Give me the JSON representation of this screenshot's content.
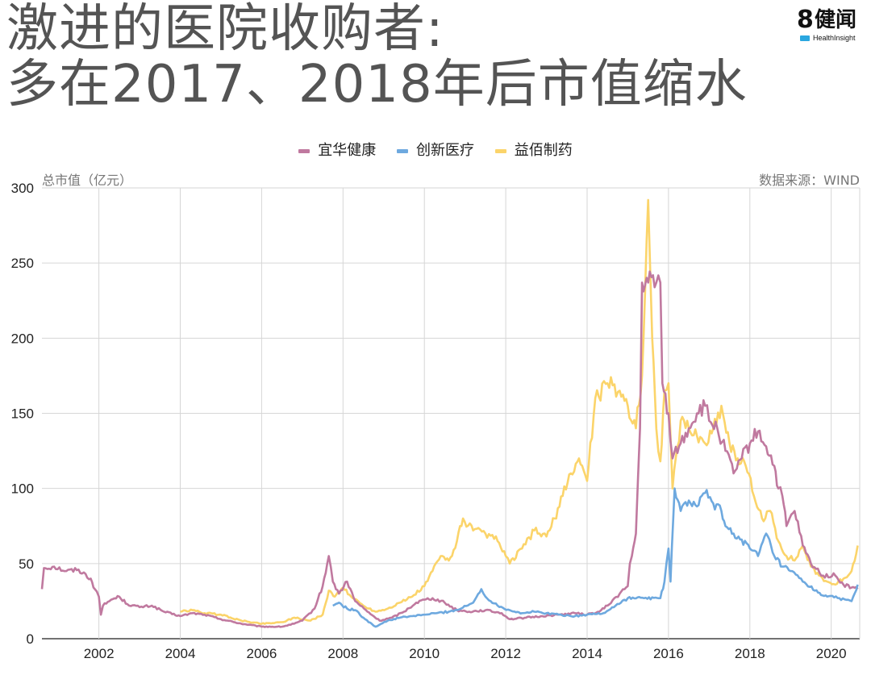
{
  "title_lines": [
    "激进的医院收购者:",
    "多在2017、2018年后市值缩水"
  ],
  "logo": {
    "mark": "8",
    "cn": "健闻",
    "en": "HealthInsight"
  },
  "chart_data": {
    "type": "line",
    "ylabel": "总市值（亿元）",
    "source": "数据来源：WIND",
    "xlim": [
      2000.6,
      2020.7
    ],
    "ylim": [
      0,
      300
    ],
    "x_ticks": [
      2002,
      2004,
      2006,
      2008,
      2010,
      2012,
      2014,
      2016,
      2018,
      2020
    ],
    "y_ticks": [
      0,
      50,
      100,
      150,
      200,
      250,
      300
    ],
    "grid": true,
    "legend": "top-center",
    "series": [
      {
        "name": "宜华健康",
        "color": "#c0799f",
        "points": [
          [
            2000.6,
            33
          ],
          [
            2000.65,
            47
          ],
          [
            2000.9,
            48
          ],
          [
            2001.2,
            45
          ],
          [
            2001.5,
            46
          ],
          [
            2001.8,
            40
          ],
          [
            2001.9,
            33
          ],
          [
            2002.0,
            28
          ],
          [
            2002.05,
            16
          ],
          [
            2002.1,
            22
          ],
          [
            2002.3,
            26
          ],
          [
            2002.5,
            28
          ],
          [
            2002.7,
            23
          ],
          [
            2003.0,
            21
          ],
          [
            2003.3,
            22
          ],
          [
            2003.6,
            18
          ],
          [
            2004.0,
            15
          ],
          [
            2004.3,
            17
          ],
          [
            2004.6,
            16
          ],
          [
            2005.0,
            13
          ],
          [
            2005.5,
            10
          ],
          [
            2006.0,
            8
          ],
          [
            2006.5,
            8
          ],
          [
            2006.8,
            10
          ],
          [
            2007.0,
            12
          ],
          [
            2007.3,
            20
          ],
          [
            2007.5,
            35
          ],
          [
            2007.65,
            55
          ],
          [
            2007.75,
            38
          ],
          [
            2007.9,
            30
          ],
          [
            2008.1,
            38
          ],
          [
            2008.3,
            25
          ],
          [
            2008.6,
            18
          ],
          [
            2008.9,
            12
          ],
          [
            2009.2,
            14
          ],
          [
            2009.5,
            18
          ],
          [
            2009.8,
            24
          ],
          [
            2010.0,
            26
          ],
          [
            2010.2,
            27
          ],
          [
            2010.5,
            24
          ],
          [
            2010.8,
            19
          ],
          [
            2011.1,
            18
          ],
          [
            2011.5,
            19
          ],
          [
            2011.9,
            17
          ],
          [
            2012.1,
            13
          ],
          [
            2012.5,
            14
          ],
          [
            2012.9,
            15
          ],
          [
            2013.3,
            16
          ],
          [
            2013.7,
            17
          ],
          [
            2014.0,
            16
          ],
          [
            2014.3,
            18
          ],
          [
            2014.5,
            22
          ],
          [
            2014.8,
            30
          ],
          [
            2015.0,
            35
          ],
          [
            2015.05,
            50
          ],
          [
            2015.1,
            55
          ],
          [
            2015.2,
            70
          ],
          [
            2015.3,
            140
          ],
          [
            2015.35,
            237
          ],
          [
            2015.5,
            237
          ],
          [
            2015.7,
            237
          ],
          [
            2015.8,
            237
          ],
          [
            2015.85,
            170
          ],
          [
            2016.0,
            150
          ],
          [
            2016.1,
            120
          ],
          [
            2016.3,
            130
          ],
          [
            2016.5,
            140
          ],
          [
            2016.7,
            150
          ],
          [
            2016.9,
            155
          ],
          [
            2017.0,
            145
          ],
          [
            2017.2,
            140
          ],
          [
            2017.4,
            125
          ],
          [
            2017.6,
            110
          ],
          [
            2017.8,
            120
          ],
          [
            2018.0,
            130
          ],
          [
            2018.2,
            138
          ],
          [
            2018.4,
            128
          ],
          [
            2018.6,
            115
          ],
          [
            2018.7,
            100
          ],
          [
            2018.8,
            95
          ],
          [
            2018.9,
            75
          ],
          [
            2019.1,
            85
          ],
          [
            2019.3,
            62
          ],
          [
            2019.5,
            50
          ],
          [
            2019.8,
            42
          ],
          [
            2020.1,
            42
          ],
          [
            2020.3,
            36
          ],
          [
            2020.5,
            34
          ],
          [
            2020.65,
            33
          ]
        ]
      },
      {
        "name": "创新医疗",
        "color": "#6ea9df",
        "points": [
          [
            2007.75,
            22
          ],
          [
            2007.9,
            24
          ],
          [
            2008.1,
            20
          ],
          [
            2008.3,
            19
          ],
          [
            2008.5,
            14
          ],
          [
            2008.8,
            8
          ],
          [
            2009.1,
            12
          ],
          [
            2009.4,
            14
          ],
          [
            2009.7,
            15
          ],
          [
            2010.0,
            16
          ],
          [
            2010.3,
            17
          ],
          [
            2010.6,
            18
          ],
          [
            2010.9,
            20
          ],
          [
            2011.2,
            24
          ],
          [
            2011.4,
            33
          ],
          [
            2011.5,
            28
          ],
          [
            2011.8,
            22
          ],
          [
            2012.1,
            19
          ],
          [
            2012.4,
            17
          ],
          [
            2012.7,
            18
          ],
          [
            2013.0,
            17
          ],
          [
            2013.3,
            16
          ],
          [
            2013.7,
            15
          ],
          [
            2014.0,
            16
          ],
          [
            2014.4,
            17
          ],
          [
            2014.7,
            22
          ],
          [
            2015.0,
            27
          ],
          [
            2015.4,
            27
          ],
          [
            2015.8,
            27
          ],
          [
            2015.9,
            38
          ],
          [
            2016.0,
            60
          ],
          [
            2016.05,
            38
          ],
          [
            2016.15,
            100
          ],
          [
            2016.3,
            85
          ],
          [
            2016.5,
            92
          ],
          [
            2016.7,
            88
          ],
          [
            2016.9,
            97
          ],
          [
            2017.1,
            90
          ],
          [
            2017.3,
            85
          ],
          [
            2017.4,
            75
          ],
          [
            2017.6,
            70
          ],
          [
            2017.8,
            66
          ],
          [
            2018.0,
            60
          ],
          [
            2018.2,
            55
          ],
          [
            2018.4,
            70
          ],
          [
            2018.6,
            55
          ],
          [
            2018.8,
            48
          ],
          [
            2019.0,
            45
          ],
          [
            2019.3,
            38
          ],
          [
            2019.6,
            32
          ],
          [
            2019.9,
            28
          ],
          [
            2020.2,
            27
          ],
          [
            2020.5,
            25
          ],
          [
            2020.65,
            36
          ]
        ]
      },
      {
        "name": "益佰制药",
        "color": "#fbd46a",
        "points": [
          [
            2004.0,
            18
          ],
          [
            2004.3,
            19
          ],
          [
            2004.6,
            17
          ],
          [
            2005.0,
            16
          ],
          [
            2005.5,
            12
          ],
          [
            2006.0,
            10
          ],
          [
            2006.5,
            11
          ],
          [
            2006.8,
            14
          ],
          [
            2007.2,
            12
          ],
          [
            2007.5,
            16
          ],
          [
            2007.65,
            32
          ],
          [
            2007.8,
            28
          ],
          [
            2008.0,
            34
          ],
          [
            2008.2,
            28
          ],
          [
            2008.5,
            22
          ],
          [
            2008.8,
            18
          ],
          [
            2009.1,
            20
          ],
          [
            2009.4,
            24
          ],
          [
            2009.7,
            28
          ],
          [
            2010.0,
            35
          ],
          [
            2010.2,
            45
          ],
          [
            2010.4,
            55
          ],
          [
            2010.6,
            52
          ],
          [
            2010.8,
            65
          ],
          [
            2010.95,
            80
          ],
          [
            2011.2,
            72
          ],
          [
            2011.5,
            70
          ],
          [
            2011.8,
            65
          ],
          [
            2012.0,
            55
          ],
          [
            2012.1,
            50
          ],
          [
            2012.4,
            60
          ],
          [
            2012.7,
            72
          ],
          [
            2013.0,
            68
          ],
          [
            2013.2,
            80
          ],
          [
            2013.4,
            95
          ],
          [
            2013.6,
            110
          ],
          [
            2013.8,
            120
          ],
          [
            2014.0,
            105
          ],
          [
            2014.2,
            160
          ],
          [
            2014.5,
            170
          ],
          [
            2014.8,
            165
          ],
          [
            2015.0,
            155
          ],
          [
            2015.2,
            140
          ],
          [
            2015.35,
            175
          ],
          [
            2015.5,
            292
          ],
          [
            2015.6,
            200
          ],
          [
            2015.7,
            140
          ],
          [
            2015.8,
            118
          ],
          [
            2015.9,
            165
          ],
          [
            2016.0,
            170
          ],
          [
            2016.1,
            100
          ],
          [
            2016.3,
            145
          ],
          [
            2016.5,
            140
          ],
          [
            2016.7,
            135
          ],
          [
            2016.9,
            130
          ],
          [
            2017.1,
            140
          ],
          [
            2017.3,
            155
          ],
          [
            2017.5,
            130
          ],
          [
            2017.7,
            120
          ],
          [
            2017.9,
            115
          ],
          [
            2018.1,
            95
          ],
          [
            2018.3,
            80
          ],
          [
            2018.5,
            85
          ],
          [
            2018.7,
            65
          ],
          [
            2018.9,
            55
          ],
          [
            2019.1,
            52
          ],
          [
            2019.3,
            62
          ],
          [
            2019.5,
            48
          ],
          [
            2019.7,
            42
          ],
          [
            2019.9,
            38
          ],
          [
            2020.1,
            36
          ],
          [
            2020.3,
            40
          ],
          [
            2020.5,
            45
          ],
          [
            2020.65,
            62
          ]
        ]
      }
    ]
  }
}
